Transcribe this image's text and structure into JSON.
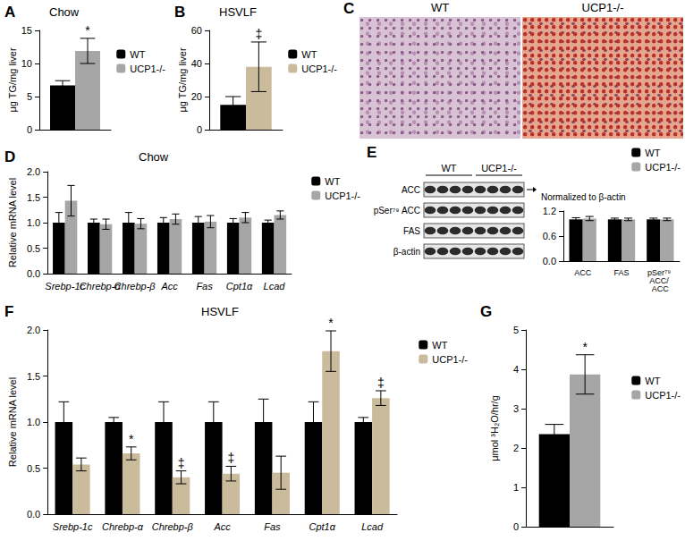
{
  "chart_data": [
    {
      "panel": "A",
      "type": "bar",
      "title": "Chow",
      "y_label": "μg TG/mg liver",
      "categories": [
        null
      ],
      "ylim": [
        0,
        15
      ],
      "yticks": [
        0,
        5,
        10,
        15
      ],
      "grid": false,
      "legend": "right",
      "series": [
        {
          "name": "WT",
          "color": "#000000",
          "values": [
            6.7
          ],
          "errors": [
            0.7
          ],
          "marks": [
            null
          ]
        },
        {
          "name": "UCP1-/-",
          "color": "#a6a6a6",
          "values": [
            11.9
          ],
          "errors": [
            1.9
          ],
          "marks": [
            "*"
          ]
        }
      ]
    },
    {
      "panel": "B",
      "type": "bar",
      "title": "HSVLF",
      "y_label": "μg TG/mg liver",
      "categories": [
        null
      ],
      "ylim": [
        0,
        60
      ],
      "yticks": [
        0,
        20,
        40,
        60
      ],
      "grid": false,
      "legend": "right",
      "series": [
        {
          "name": "WT",
          "color": "#000000",
          "values": [
            15
          ],
          "errors": [
            5
          ],
          "marks": [
            null
          ]
        },
        {
          "name": "UCP1-/-",
          "color": "#c9bb9b",
          "values": [
            38
          ],
          "errors": [
            15
          ],
          "marks": [
            "‡"
          ]
        }
      ]
    },
    {
      "panel": "D",
      "type": "bar",
      "title": "Chow",
      "y_label": "Relative mRNA level",
      "categories": [
        "Srebp-1c",
        "Chrebp-α",
        "Chrebp-β",
        "Acc",
        "Fas",
        "Cpt1α",
        "Lcad"
      ],
      "ylim": [
        0,
        2
      ],
      "yticks": [
        {
          "value": 0,
          "label": "0.0"
        },
        {
          "value": 0.5,
          "label": "0.5"
        },
        {
          "value": 1,
          "label": "1.0"
        },
        {
          "value": 1.5,
          "label": "1.5"
        },
        {
          "value": 2,
          "label": "2.0"
        }
      ],
      "grid": false,
      "legend": "right",
      "series": [
        {
          "name": "WT",
          "color": "#000000",
          "values": [
            1.0,
            1.0,
            1.0,
            1.0,
            1.0,
            1.0,
            1.0
          ],
          "errors": [
            0.2,
            0.07,
            0.2,
            0.1,
            0.12,
            0.08,
            0.05
          ],
          "marks": [
            null,
            null,
            null,
            null,
            null,
            null,
            null
          ]
        },
        {
          "name": "UCP1-/-",
          "color": "#a6a6a6",
          "values": [
            1.43,
            0.97,
            0.98,
            1.07,
            1.02,
            1.1,
            1.15
          ],
          "errors": [
            0.3,
            0.1,
            0.1,
            0.1,
            0.12,
            0.1,
            0.08
          ],
          "marks": [
            null,
            null,
            null,
            null,
            null,
            null,
            null
          ]
        }
      ]
    },
    {
      "type": "bar",
      "title": "Normalized to β-actin",
      "categories": [
        "ACC",
        "FAS",
        "pSer⁷⁹ ACC/ ACC"
      ],
      "ylim": [
        0,
        1.2
      ],
      "yticks": [
        {
          "value": 0,
          "label": "0.0"
        },
        {
          "value": 0.6,
          "label": "0.6"
        },
        {
          "value": 1.2,
          "label": "1.2"
        }
      ],
      "grid": false,
      "legend": "right",
      "series": [
        {
          "name": "WT",
          "color": "#000000",
          "values": [
            1.0,
            1.0,
            1.0
          ],
          "errors": [
            0.04,
            0.03,
            0.03
          ],
          "marks": [
            null,
            null,
            null
          ]
        },
        {
          "name": "UCP1-/-",
          "color": "#a6a6a6",
          "values": [
            1.02,
            1.0,
            1.0
          ],
          "errors": [
            0.05,
            0.03,
            0.03
          ],
          "marks": [
            null,
            null,
            null
          ]
        }
      ]
    },
    {
      "panel": "F",
      "type": "bar",
      "title": "HSVLF",
      "y_label": "Relative mRNA level",
      "categories": [
        "Srebp-1c",
        "Chrebp-α",
        "Chrebp-β",
        "Acc",
        "Fas",
        "Cpt1α",
        "Lcad"
      ],
      "ylim": [
        0,
        2
      ],
      "yticks": [
        {
          "value": 0,
          "label": "0.0"
        },
        {
          "value": 0.5,
          "label": "0.5"
        },
        {
          "value": 1,
          "label": "1.0"
        },
        {
          "value": 1.5,
          "label": "1.5"
        },
        {
          "value": 2,
          "label": "2.0"
        }
      ],
      "grid": false,
      "legend": "right",
      "series": [
        {
          "name": "WT",
          "color": "#000000",
          "values": [
            1.0,
            1.0,
            1.0,
            1.0,
            1.0,
            1.0,
            1.0
          ],
          "errors": [
            0.22,
            0.05,
            0.22,
            0.22,
            0.25,
            0.22,
            0.05
          ],
          "marks": [
            null,
            null,
            null,
            null,
            null,
            null,
            null
          ]
        },
        {
          "name": "UCP1-/-",
          "color": "#c9bb9b",
          "values": [
            0.54,
            0.66,
            0.4,
            0.44,
            0.45,
            1.77,
            1.26
          ],
          "errors": [
            0.07,
            0.07,
            0.07,
            0.08,
            0.18,
            0.22,
            0.08
          ],
          "marks": [
            null,
            "*",
            "‡",
            "‡",
            null,
            "*",
            "‡"
          ]
        }
      ]
    },
    {
      "panel": "G",
      "type": "bar",
      "y_label": "μmol ³H₂O/hr/g",
      "categories": [
        null
      ],
      "ylim": [
        0,
        5
      ],
      "yticks": [
        0,
        1,
        2,
        3,
        4,
        5
      ],
      "grid": false,
      "legend": "right",
      "series": [
        {
          "name": "WT",
          "color": "#000000",
          "values": [
            2.35
          ],
          "errors": [
            0.25
          ],
          "marks": [
            null
          ]
        },
        {
          "name": "UCP1-/-",
          "color": "#a6a6a6",
          "values": [
            3.87
          ],
          "errors": [
            0.5
          ],
          "marks": [
            "*"
          ]
        }
      ]
    }
  ],
  "histology": {
    "panel": "C",
    "images": [
      "WT",
      "UCP1-/-"
    ]
  },
  "blot": {
    "panel": "E",
    "groups": [
      "WT",
      "UCP1-/-"
    ],
    "lanes_per_group": 4,
    "rows": [
      "ACC",
      "pSer⁷⁹ ACC",
      "FAS",
      "β-actin"
    ]
  }
}
